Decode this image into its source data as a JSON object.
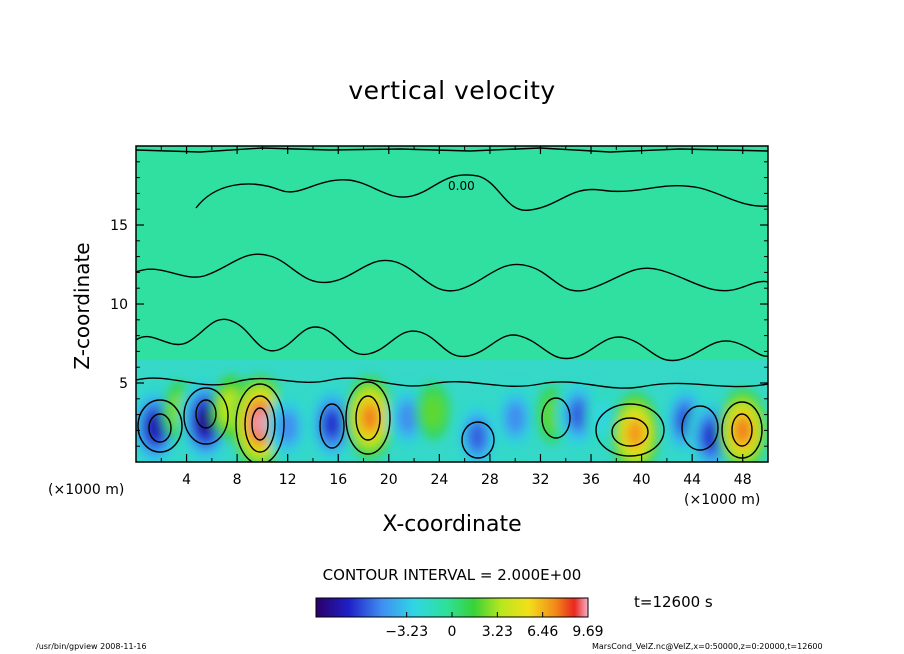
{
  "title": "vertical velocity",
  "chart_data": {
    "type": "heatmap",
    "title": "vertical velocity",
    "xlabel": "X-coordinate",
    "ylabel": "Z-coordinate",
    "x_unit": "(×1000 m)",
    "xlim": [
      0,
      50
    ],
    "ylim": [
      0,
      20
    ],
    "x_ticks": [
      4,
      8,
      12,
      16,
      20,
      24,
      28,
      32,
      36,
      40,
      44,
      48
    ],
    "y_ticks": [
      5,
      10,
      15
    ],
    "contour_label": "0.00",
    "contour_interval_text": "CONTOUR INTERVAL = 2.000E+00",
    "time_label": "t=12600 s",
    "colorbar": {
      "range": [
        -9.69,
        9.69
      ],
      "tick_labels": [
        "−3.23",
        "0",
        "3.23",
        "6.46",
        "9.69"
      ],
      "tick_values": [
        -3.23,
        0,
        3.23,
        6.46,
        9.69
      ]
    },
    "cells": [
      {
        "x": 1.5,
        "z": 2.2,
        "w": -8.0
      },
      {
        "x": 3.5,
        "z": 3.2,
        "w": 3.0
      },
      {
        "x": 5.5,
        "z": 2.6,
        "w": -9.0
      },
      {
        "x": 7.5,
        "z": 3.4,
        "w": 4.0
      },
      {
        "x": 9.8,
        "z": 2.5,
        "w": 9.5
      },
      {
        "x": 12.0,
        "z": 2.2,
        "w": -5.0
      },
      {
        "x": 15.5,
        "z": 2.4,
        "w": -7.0
      },
      {
        "x": 18.5,
        "z": 2.8,
        "w": 7.5
      },
      {
        "x": 21.5,
        "z": 2.8,
        "w": -5.0
      },
      {
        "x": 23.5,
        "z": 3.2,
        "w": 2.5
      },
      {
        "x": 27.0,
        "z": 1.6,
        "w": -6.0
      },
      {
        "x": 30.0,
        "z": 2.8,
        "w": -5.0
      },
      {
        "x": 33.0,
        "z": 3.0,
        "w": 2.5
      },
      {
        "x": 35.0,
        "z": 3.0,
        "w": -6.0
      },
      {
        "x": 37.0,
        "z": 2.8,
        "w": -2.5
      },
      {
        "x": 39.5,
        "z": 1.8,
        "w": 7.0
      },
      {
        "x": 43.5,
        "z": 2.6,
        "w": -6.5
      },
      {
        "x": 45.5,
        "z": 1.6,
        "w": -7.0
      },
      {
        "x": 48.0,
        "z": 2.0,
        "w": 7.5
      }
    ]
  },
  "footer": {
    "left": "/usr/bin/gpview  2008-11-16",
    "right": "MarsCond_VelZ.nc@VelZ,x=0:50000,z=0:20000,t=12600"
  }
}
